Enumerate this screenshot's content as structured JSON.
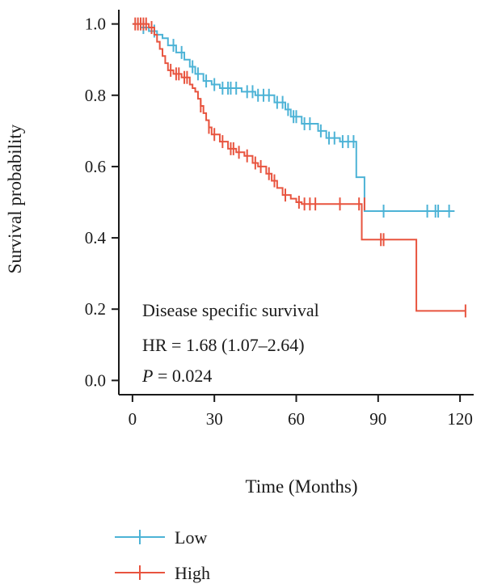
{
  "chart_data": {
    "type": "line",
    "title": "",
    "xlabel": "Time (Months)",
    "ylabel": "Survival probability",
    "xlim": [
      -5,
      125
    ],
    "ylim": [
      -0.04,
      1.04
    ],
    "xticks": [
      0,
      30,
      60,
      90,
      120
    ],
    "yticks": [
      0.0,
      0.2,
      0.4,
      0.6,
      0.8,
      1.0
    ],
    "yticklabels": [
      "0.0",
      "0.2",
      "0.4",
      "0.6",
      "0.8",
      "1.0"
    ],
    "grid": false,
    "legend_position": "bottom-left",
    "annotations": {
      "line1": "Disease specific survival",
      "line2": "HR = 1.68 (1.07–2.64)",
      "line3_italic": "P",
      "line3_rest": " = 0.024"
    },
    "series": [
      {
        "name": "Low",
        "color": "#4db3d6",
        "steps": [
          [
            0,
            1.0
          ],
          [
            3,
            0.99
          ],
          [
            6,
            0.98
          ],
          [
            9,
            0.97
          ],
          [
            11,
            0.96
          ],
          [
            13,
            0.94
          ],
          [
            16,
            0.92
          ],
          [
            19,
            0.9
          ],
          [
            21,
            0.88
          ],
          [
            23,
            0.86
          ],
          [
            26,
            0.84
          ],
          [
            29,
            0.83
          ],
          [
            32,
            0.82
          ],
          [
            37,
            0.82
          ],
          [
            40,
            0.81
          ],
          [
            45,
            0.8
          ],
          [
            52,
            0.78
          ],
          [
            56,
            0.76
          ],
          [
            58,
            0.74
          ],
          [
            62,
            0.72
          ],
          [
            68,
            0.7
          ],
          [
            71,
            0.68
          ],
          [
            76,
            0.67
          ],
          [
            82,
            0.67
          ],
          [
            82,
            0.57
          ],
          [
            85,
            0.57
          ],
          [
            85,
            0.475
          ],
          [
            118,
            0.475
          ]
        ],
        "censors": [
          [
            4,
            0.99
          ],
          [
            8,
            0.98
          ],
          [
            15,
            0.94
          ],
          [
            18,
            0.92
          ],
          [
            22,
            0.88
          ],
          [
            24,
            0.86
          ],
          [
            27,
            0.84
          ],
          [
            30,
            0.83
          ],
          [
            33,
            0.82
          ],
          [
            35,
            0.82
          ],
          [
            36,
            0.82
          ],
          [
            38,
            0.82
          ],
          [
            42,
            0.81
          ],
          [
            44,
            0.81
          ],
          [
            46,
            0.8
          ],
          [
            48,
            0.8
          ],
          [
            50,
            0.8
          ],
          [
            53,
            0.78
          ],
          [
            55,
            0.78
          ],
          [
            57,
            0.76
          ],
          [
            59,
            0.74
          ],
          [
            60,
            0.74
          ],
          [
            63,
            0.72
          ],
          [
            65,
            0.72
          ],
          [
            69,
            0.7
          ],
          [
            72,
            0.68
          ],
          [
            74,
            0.68
          ],
          [
            77,
            0.67
          ],
          [
            79,
            0.67
          ],
          [
            81,
            0.67
          ],
          [
            92,
            0.475
          ],
          [
            108,
            0.475
          ],
          [
            111,
            0.475
          ],
          [
            112,
            0.475
          ],
          [
            116,
            0.475
          ]
        ]
      },
      {
        "name": "High",
        "color": "#e8543f",
        "steps": [
          [
            0,
            1.0
          ],
          [
            6,
            0.99
          ],
          [
            8,
            0.97
          ],
          [
            9,
            0.95
          ],
          [
            10,
            0.93
          ],
          [
            11,
            0.91
          ],
          [
            12,
            0.89
          ],
          [
            13,
            0.87
          ],
          [
            15,
            0.86
          ],
          [
            18,
            0.85
          ],
          [
            21,
            0.83
          ],
          [
            22,
            0.82
          ],
          [
            23,
            0.81
          ],
          [
            24,
            0.79
          ],
          [
            25,
            0.77
          ],
          [
            26,
            0.75
          ],
          [
            27,
            0.73
          ],
          [
            28,
            0.71
          ],
          [
            29,
            0.69
          ],
          [
            32,
            0.67
          ],
          [
            35,
            0.65
          ],
          [
            38,
            0.64
          ],
          [
            41,
            0.63
          ],
          [
            44,
            0.61
          ],
          [
            46,
            0.6
          ],
          [
            49,
            0.58
          ],
          [
            51,
            0.56
          ],
          [
            53,
            0.54
          ],
          [
            55,
            0.52
          ],
          [
            58,
            0.51
          ],
          [
            60,
            0.5
          ],
          [
            62,
            0.495
          ],
          [
            84,
            0.495
          ],
          [
            84,
            0.395
          ],
          [
            104,
            0.395
          ],
          [
            104,
            0.195
          ],
          [
            122,
            0.195
          ]
        ],
        "censors": [
          [
            1,
            1.0
          ],
          [
            2,
            1.0
          ],
          [
            3,
            1.0
          ],
          [
            4,
            1.0
          ],
          [
            5,
            1.0
          ],
          [
            7,
            0.99
          ],
          [
            14,
            0.87
          ],
          [
            16,
            0.86
          ],
          [
            17,
            0.86
          ],
          [
            19,
            0.85
          ],
          [
            20,
            0.85
          ],
          [
            25,
            0.77
          ],
          [
            28,
            0.71
          ],
          [
            30,
            0.69
          ],
          [
            33,
            0.67
          ],
          [
            36,
            0.65
          ],
          [
            37,
            0.65
          ],
          [
            39,
            0.64
          ],
          [
            42,
            0.63
          ],
          [
            45,
            0.61
          ],
          [
            47,
            0.6
          ],
          [
            50,
            0.58
          ],
          [
            52,
            0.56
          ],
          [
            56,
            0.52
          ],
          [
            61,
            0.5
          ],
          [
            63,
            0.495
          ],
          [
            65,
            0.495
          ],
          [
            67,
            0.495
          ],
          [
            76,
            0.495
          ],
          [
            83,
            0.495
          ],
          [
            85,
            0.495
          ],
          [
            91,
            0.395
          ],
          [
            92,
            0.395
          ],
          [
            122,
            0.195
          ]
        ]
      }
    ]
  }
}
